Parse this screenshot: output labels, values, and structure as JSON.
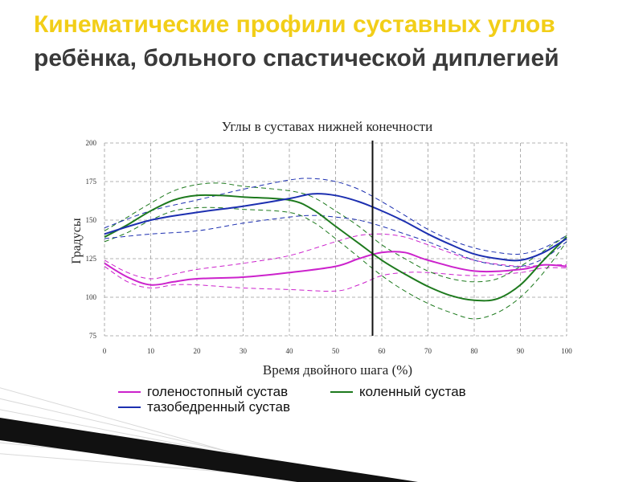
{
  "slide": {
    "title_highlight": "Кинематические профили суставных углов",
    "title_rest": "ребёнка, больного спастической диплегией",
    "colors": {
      "highlight": "#f2ce18",
      "text": "#3a3a3a"
    }
  },
  "chart_data": {
    "type": "line",
    "title": "Углы в суставах нижней конечности",
    "xlabel": "Время двойного шага (%)",
    "ylabel": "Градусы",
    "xlim": [
      0,
      100
    ],
    "ylim": [
      75,
      200
    ],
    "x_ticks": [
      "0",
      "10",
      "20",
      "30",
      "40",
      "50",
      "60",
      "70",
      "80",
      "90",
      "100"
    ],
    "y_ticks": [
      "75",
      "100",
      "125",
      "150",
      "175",
      "200"
    ],
    "grid": "dashed",
    "vertical_marker_x": 58,
    "legend_placement": "bottom",
    "series": [
      {
        "name": "голеностопный сустав",
        "color": "#cc22cc",
        "x": [
          0,
          5,
          10,
          15,
          20,
          30,
          40,
          50,
          55,
          60,
          65,
          70,
          80,
          90,
          95,
          100
        ],
        "mean": [
          122,
          113,
          108,
          110,
          112,
          113,
          116,
          120,
          125,
          129,
          129,
          124,
          117,
          118,
          121,
          120
        ],
        "upper": [
          124,
          116,
          112,
          115,
          118,
          122,
          127,
          136,
          140,
          141,
          139,
          134,
          124,
          120,
          121,
          121
        ],
        "lower": [
          120,
          110,
          106,
          108,
          108,
          106,
          105,
          104,
          108,
          114,
          116,
          116,
          114,
          116,
          119,
          119
        ]
      },
      {
        "name": "коленный сустав",
        "color": "#1e7a1e",
        "x": [
          0,
          5,
          10,
          15,
          20,
          25,
          30,
          40,
          45,
          50,
          55,
          60,
          65,
          70,
          75,
          80,
          85,
          90,
          95,
          100
        ],
        "mean": [
          139,
          147,
          156,
          163,
          166,
          166,
          165,
          163,
          157,
          146,
          135,
          124,
          115,
          107,
          101,
          98,
          99,
          108,
          124,
          139
        ],
        "upper": [
          143,
          152,
          161,
          169,
          173,
          174,
          172,
          169,
          165,
          156,
          146,
          134,
          125,
          117,
          112,
          110,
          112,
          120,
          130,
          140
        ],
        "lower": [
          136,
          142,
          150,
          156,
          158,
          158,
          157,
          155,
          149,
          138,
          126,
          114,
          104,
          96,
          90,
          86,
          90,
          100,
          116,
          136
        ]
      },
      {
        "name": "тазобедренный сустав",
        "color": "#1c2fb0",
        "x": [
          0,
          10,
          20,
          30,
          40,
          45,
          50,
          55,
          60,
          65,
          70,
          75,
          80,
          85,
          90,
          95,
          100
        ],
        "mean": [
          141,
          150,
          155,
          159,
          164,
          167,
          166,
          162,
          156,
          149,
          141,
          134,
          128,
          125,
          124,
          129,
          138
        ],
        "upper": [
          145,
          156,
          163,
          170,
          176,
          177,
          175,
          170,
          162,
          153,
          144,
          137,
          132,
          129,
          128,
          132,
          140
        ],
        "lower": [
          138,
          141,
          143,
          148,
          152,
          153,
          152,
          150,
          146,
          141,
          136,
          130,
          124,
          121,
          120,
          125,
          136
        ]
      }
    ]
  }
}
